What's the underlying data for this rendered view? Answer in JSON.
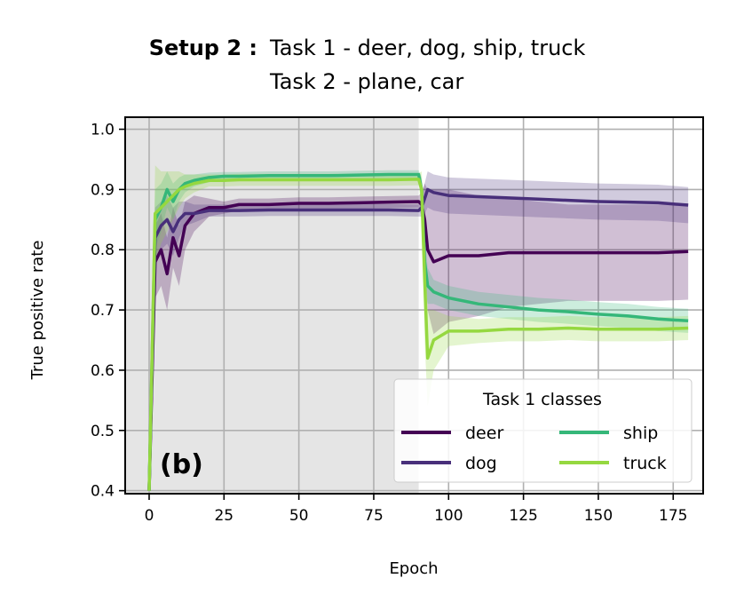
{
  "chart_data": {
    "type": "line",
    "title_prefix": "Setup 2 :",
    "title_lines": [
      "Task 1 - deer, dog, ship, truck",
      "Task 2 - plane, car"
    ],
    "xlabel": "Epoch",
    "ylabel": "True positive rate",
    "panel_label": "(b)",
    "xlim": [
      -8,
      185
    ],
    "ylim": [
      0.395,
      1.02
    ],
    "xticks": [
      0,
      25,
      50,
      75,
      100,
      125,
      150,
      175
    ],
    "yticks": [
      0.4,
      0.5,
      0.6,
      0.7,
      0.8,
      0.9,
      1.0
    ],
    "xtick_labels": [
      "0",
      "25",
      "50",
      "75",
      "100",
      "125",
      "150",
      "175"
    ],
    "ytick_labels": [
      "0.4",
      "0.5",
      "0.6",
      "0.7",
      "0.8",
      "0.9",
      "1.0"
    ],
    "grid": true,
    "shaded_region": {
      "x_start": -8,
      "x_end": 90,
      "color": "#e5e5e5"
    },
    "legend": {
      "title": "Task 1 classes",
      "placement": "lower-right",
      "columns": 2
    },
    "series": [
      {
        "name": "deer",
        "color": "#440154",
        "x": [
          0,
          2,
          4,
          6,
          8,
          10,
          12,
          15,
          20,
          25,
          30,
          40,
          50,
          60,
          70,
          80,
          90,
          91,
          92,
          93,
          95,
          100,
          110,
          120,
          130,
          140,
          150,
          160,
          170,
          180
        ],
        "y": [
          0.4,
          0.78,
          0.8,
          0.76,
          0.82,
          0.79,
          0.84,
          0.86,
          0.87,
          0.87,
          0.875,
          0.875,
          0.877,
          0.877,
          0.878,
          0.879,
          0.88,
          0.875,
          0.85,
          0.8,
          0.78,
          0.79,
          0.79,
          0.795,
          0.795,
          0.795,
          0.795,
          0.795,
          0.795,
          0.797
        ],
        "band_halfwidth": [
          0,
          0.06,
          0.06,
          0.06,
          0.05,
          0.05,
          0.04,
          0.03,
          0.015,
          0.01,
          0.01,
          0.01,
          0.01,
          0.01,
          0.01,
          0.01,
          0.01,
          0.02,
          0.06,
          0.1,
          0.12,
          0.11,
          0.1,
          0.09,
          0.085,
          0.08,
          0.08,
          0.08,
          0.08,
          0.08
        ]
      },
      {
        "name": "dog",
        "color": "#482f7a",
        "x": [
          0,
          2,
          4,
          6,
          8,
          10,
          12,
          15,
          20,
          25,
          30,
          40,
          50,
          60,
          70,
          80,
          90,
          91,
          92,
          93,
          95,
          100,
          110,
          120,
          130,
          140,
          150,
          160,
          170,
          180
        ],
        "y": [
          0.4,
          0.82,
          0.84,
          0.85,
          0.83,
          0.85,
          0.86,
          0.86,
          0.865,
          0.865,
          0.865,
          0.866,
          0.866,
          0.866,
          0.866,
          0.866,
          0.865,
          0.87,
          0.885,
          0.9,
          0.895,
          0.89,
          0.888,
          0.886,
          0.884,
          0.882,
          0.88,
          0.879,
          0.878,
          0.874
        ],
        "band_halfwidth": [
          0,
          0.05,
          0.04,
          0.04,
          0.04,
          0.03,
          0.02,
          0.015,
          0.01,
          0.01,
          0.01,
          0.01,
          0.01,
          0.01,
          0.01,
          0.01,
          0.01,
          0.015,
          0.025,
          0.03,
          0.03,
          0.03,
          0.03,
          0.03,
          0.03,
          0.03,
          0.03,
          0.03,
          0.03,
          0.03
        ]
      },
      {
        "name": "ship",
        "color": "#35b779",
        "x": [
          0,
          2,
          4,
          6,
          8,
          10,
          12,
          15,
          20,
          25,
          30,
          40,
          50,
          60,
          70,
          80,
          90,
          91,
          92,
          93,
          95,
          100,
          110,
          120,
          130,
          140,
          150,
          160,
          170,
          180
        ],
        "y": [
          0.4,
          0.85,
          0.87,
          0.9,
          0.88,
          0.9,
          0.91,
          0.915,
          0.92,
          0.922,
          0.922,
          0.923,
          0.923,
          0.923,
          0.924,
          0.925,
          0.925,
          0.9,
          0.78,
          0.74,
          0.73,
          0.72,
          0.71,
          0.705,
          0.7,
          0.697,
          0.693,
          0.69,
          0.685,
          0.682
        ],
        "band_halfwidth": [
          0,
          0.05,
          0.04,
          0.03,
          0.03,
          0.02,
          0.015,
          0.01,
          0.008,
          0.007,
          0.007,
          0.007,
          0.007,
          0.007,
          0.007,
          0.007,
          0.007,
          0.02,
          0.05,
          0.03,
          0.02,
          0.02,
          0.02,
          0.02,
          0.02,
          0.02,
          0.02,
          0.02,
          0.02,
          0.02
        ]
      },
      {
        "name": "truck",
        "color": "#95d840",
        "x": [
          0,
          2,
          4,
          6,
          8,
          10,
          12,
          15,
          20,
          25,
          30,
          40,
          50,
          60,
          70,
          80,
          90,
          91,
          92,
          93,
          95,
          100,
          110,
          120,
          130,
          140,
          150,
          160,
          170,
          180
        ],
        "y": [
          0.4,
          0.86,
          0.87,
          0.88,
          0.89,
          0.9,
          0.905,
          0.91,
          0.915,
          0.915,
          0.916,
          0.916,
          0.916,
          0.916,
          0.916,
          0.916,
          0.917,
          0.9,
          0.75,
          0.62,
          0.65,
          0.665,
          0.665,
          0.668,
          0.668,
          0.67,
          0.668,
          0.668,
          0.668,
          0.67
        ],
        "band_halfwidth": [
          0,
          0.08,
          0.06,
          0.05,
          0.04,
          0.03,
          0.02,
          0.015,
          0.01,
          0.01,
          0.01,
          0.01,
          0.01,
          0.01,
          0.01,
          0.01,
          0.01,
          0.03,
          0.1,
          0.08,
          0.05,
          0.025,
          0.02,
          0.02,
          0.02,
          0.02,
          0.02,
          0.02,
          0.02,
          0.02
        ]
      }
    ]
  }
}
